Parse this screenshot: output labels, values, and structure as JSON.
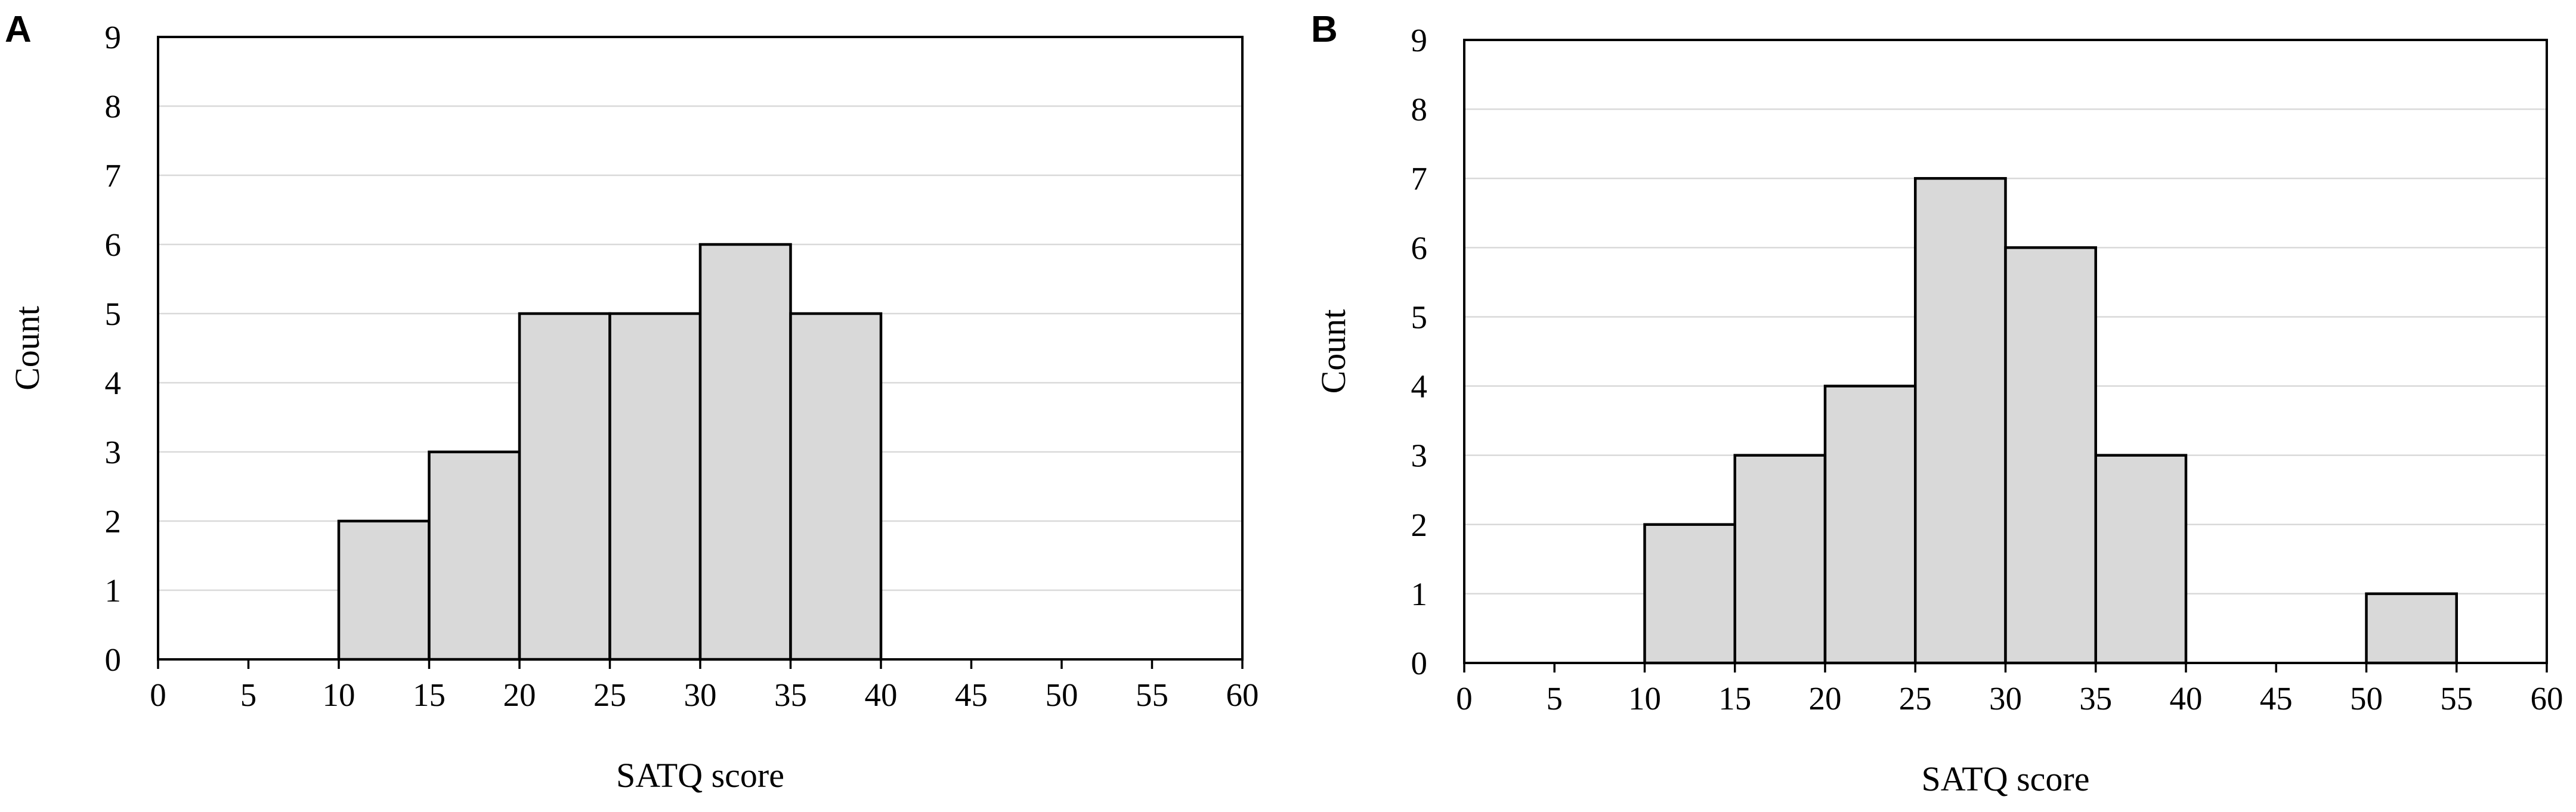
{
  "chart_data": [
    {
      "panel": "A",
      "type": "bar",
      "bins": [
        [
          0,
          5
        ],
        [
          5,
          10
        ],
        [
          10,
          15
        ],
        [
          15,
          20
        ],
        [
          20,
          25
        ],
        [
          25,
          30
        ],
        [
          30,
          35
        ],
        [
          35,
          40
        ],
        [
          40,
          45
        ],
        [
          45,
          50
        ],
        [
          50,
          55
        ],
        [
          55,
          60
        ]
      ],
      "values": [
        0,
        0,
        2,
        3,
        5,
        5,
        6,
        5,
        0,
        0,
        0,
        0
      ],
      "xlabel": "SATQ score",
      "ylabel": "Count",
      "xlim": [
        0,
        60
      ],
      "ylim": [
        0,
        9
      ],
      "xticks": [
        "0",
        "5",
        "10",
        "15",
        "20",
        "25",
        "30",
        "35",
        "40",
        "45",
        "50",
        "55",
        "60"
      ],
      "yticks": [
        "0",
        "1",
        "2",
        "3",
        "4",
        "5",
        "6",
        "7",
        "8",
        "9"
      ],
      "grid": "horizontal"
    },
    {
      "panel": "B",
      "type": "bar",
      "bins": [
        [
          0,
          5
        ],
        [
          5,
          10
        ],
        [
          10,
          15
        ],
        [
          15,
          20
        ],
        [
          20,
          25
        ],
        [
          25,
          30
        ],
        [
          30,
          35
        ],
        [
          35,
          40
        ],
        [
          40,
          45
        ],
        [
          45,
          50
        ],
        [
          50,
          55
        ],
        [
          55,
          60
        ]
      ],
      "values": [
        0,
        0,
        2,
        3,
        4,
        7,
        6,
        3,
        0,
        0,
        1,
        0
      ],
      "xlabel": "SATQ score",
      "ylabel": "Count",
      "xlim": [
        0,
        60
      ],
      "ylim": [
        0,
        9
      ],
      "xticks": [
        "0",
        "5",
        "10",
        "15",
        "20",
        "25",
        "30",
        "35",
        "40",
        "45",
        "50",
        "55",
        "60"
      ],
      "yticks": [
        "0",
        "1",
        "2",
        "3",
        "4",
        "5",
        "6",
        "7",
        "8",
        "9"
      ],
      "grid": "horizontal"
    }
  ]
}
